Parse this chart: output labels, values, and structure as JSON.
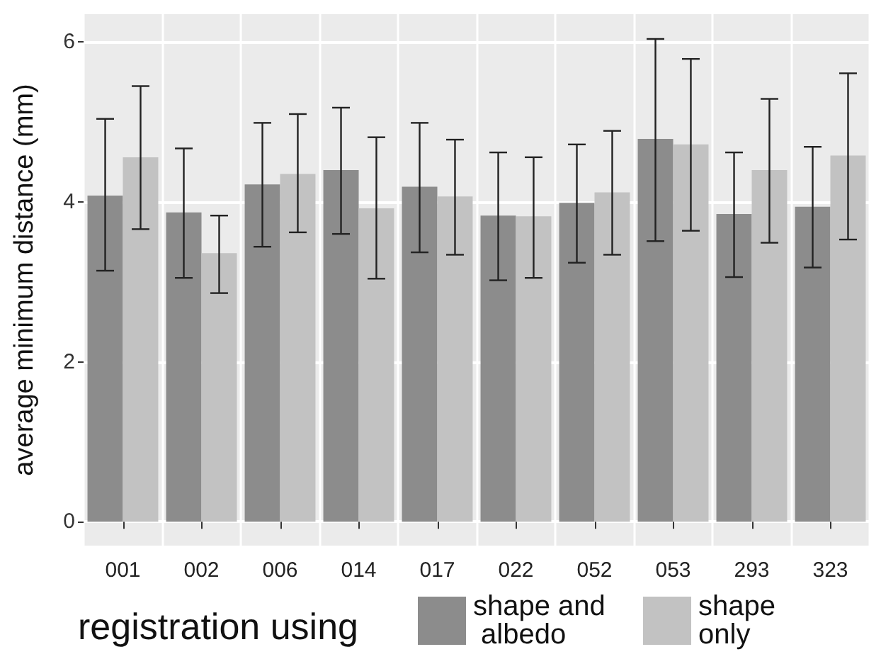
{
  "chart_data": {
    "type": "bar",
    "ylabel": "average minimum distance (mm)",
    "legend_title": "registration using",
    "categories": [
      "001",
      "002",
      "006",
      "014",
      "017",
      "022",
      "052",
      "053",
      "293",
      "323"
    ],
    "series": [
      {
        "name": "shape and albedo",
        "color": "#8c8c8c",
        "values": [
          4.08,
          3.87,
          4.22,
          4.4,
          4.19,
          3.83,
          3.99,
          4.79,
          3.85,
          3.94
        ],
        "errors": [
          [
            3.14,
            5.04
          ],
          [
            3.05,
            4.67
          ],
          [
            3.44,
            4.99
          ],
          [
            3.6,
            5.18
          ],
          [
            3.37,
            4.99
          ],
          [
            3.02,
            4.62
          ],
          [
            3.24,
            4.72
          ],
          [
            3.51,
            6.04
          ],
          [
            3.06,
            4.62
          ],
          [
            3.18,
            4.69
          ]
        ]
      },
      {
        "name": "shape only",
        "color": "#c2c2c2",
        "values": [
          4.56,
          3.36,
          4.35,
          3.92,
          4.07,
          3.82,
          4.12,
          4.72,
          4.4,
          4.58
        ],
        "errors": [
          [
            3.66,
            5.45
          ],
          [
            2.86,
            3.83
          ],
          [
            3.62,
            5.1
          ],
          [
            3.04,
            4.81
          ],
          [
            3.34,
            4.78
          ],
          [
            3.05,
            4.56
          ],
          [
            3.34,
            4.89
          ],
          [
            3.64,
            5.79
          ],
          [
            3.49,
            5.29
          ],
          [
            3.53,
            5.61
          ]
        ]
      }
    ],
    "ylim": [
      -0.3,
      6.35
    ],
    "yticks": [
      0,
      2,
      4,
      6
    ],
    "grid": true,
    "legend": "bottom"
  }
}
